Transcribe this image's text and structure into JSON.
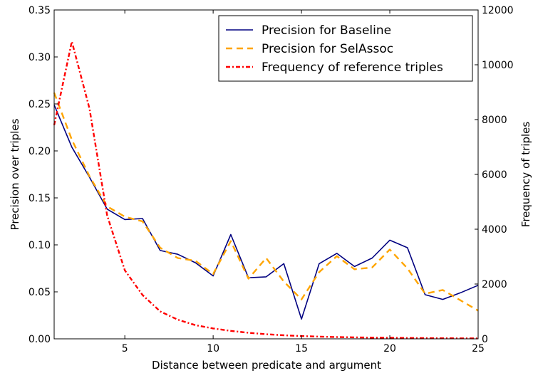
{
  "chart_data": {
    "type": "line",
    "title": "",
    "xlabel": "Distance between predicate and argument",
    "ylabel_left": "Precision over triples",
    "ylabel_right": "Frequency of triples",
    "xlim": [
      1,
      25
    ],
    "ylim_left": [
      0,
      0.35
    ],
    "ylim_right": [
      0,
      12000
    ],
    "x_ticks": [
      "5",
      "10",
      "15",
      "20",
      "25"
    ],
    "y_ticks_left": [
      "0.00",
      "0.05",
      "0.10",
      "0.15",
      "0.20",
      "0.25",
      "0.30",
      "0.35"
    ],
    "y_ticks_right": [
      "0",
      "2000",
      "4000",
      "6000",
      "8000",
      "10000",
      "12000"
    ],
    "grid": false,
    "legend_position": "top-right",
    "x": [
      1,
      2,
      3,
      4,
      5,
      6,
      7,
      8,
      9,
      10,
      11,
      12,
      13,
      14,
      15,
      16,
      17,
      18,
      19,
      20,
      21,
      22,
      23,
      24,
      25
    ],
    "series": [
      {
        "name": "Precision for Baseline",
        "axis": "left",
        "color": "#000080",
        "style": "solid",
        "values": [
          0.249,
          0.204,
          0.172,
          0.138,
          0.127,
          0.128,
          0.094,
          0.09,
          0.081,
          0.067,
          0.111,
          0.065,
          0.066,
          0.08,
          0.021,
          0.08,
          0.091,
          0.077,
          0.086,
          0.105,
          0.097,
          0.047,
          0.042,
          0.049,
          0.057
        ]
      },
      {
        "name": "Precision for SelAssoc",
        "axis": "left",
        "color": "#ffa500",
        "style": "dashed",
        "values": [
          0.262,
          0.212,
          0.173,
          0.141,
          0.13,
          0.125,
          0.097,
          0.086,
          0.083,
          0.069,
          0.104,
          0.064,
          0.086,
          0.061,
          0.042,
          0.071,
          0.088,
          0.074,
          0.076,
          0.095,
          0.075,
          0.048,
          0.052,
          0.041,
          0.03
        ]
      },
      {
        "name": "Frequency of reference triples",
        "axis": "right",
        "color": "#ff0000",
        "style": "dashdot",
        "values": [
          7800,
          10850,
          8400,
          4500,
          2500,
          1600,
          1000,
          700,
          500,
          380,
          290,
          220,
          170,
          130,
          100,
          80,
          65,
          55,
          45,
          38,
          30,
          25,
          20,
          18,
          15
        ]
      }
    ]
  }
}
